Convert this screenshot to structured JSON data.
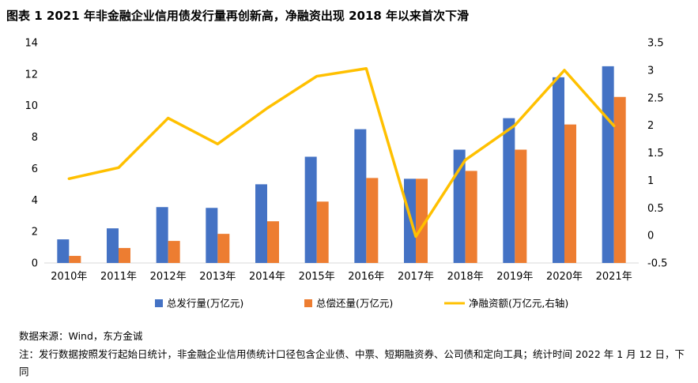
{
  "figure": {
    "title": "图表 1   2021 年非金融企业信用债发行量再创新高，净融资出现 2018 年以来首次下滑",
    "source": "数据来源：Wind，东方金诚",
    "note": "注：发行数据按照发行起始日统计，非金融企业信用债统计口径包含企业债、中票、短期融资券、公司债和定向工具；统计时间 2022 年 1 月 12 日，下同"
  },
  "chart_data": {
    "type": "bar",
    "categories": [
      "2010年",
      "2011年",
      "2012年",
      "2013年",
      "2014年",
      "2015年",
      "2016年",
      "2017年",
      "2018年",
      "2019年",
      "2020年",
      "2021年"
    ],
    "series": [
      {
        "name": "总发行量(万亿元)",
        "type": "bar",
        "axis": "left",
        "color": "#4472C4",
        "values": [
          1.5,
          2.2,
          3.55,
          3.5,
          5.0,
          6.75,
          8.5,
          5.35,
          7.2,
          9.2,
          11.8,
          12.5
        ]
      },
      {
        "name": "总偿还量(万亿元)",
        "type": "bar",
        "axis": "left",
        "color": "#ED7D31",
        "values": [
          0.45,
          0.95,
          1.4,
          1.85,
          2.65,
          3.9,
          5.4,
          5.35,
          5.85,
          7.2,
          8.8,
          10.55
        ]
      },
      {
        "name": "净融资额(万亿元,右轴)",
        "type": "line",
        "axis": "right",
        "color": "#FFC000",
        "values": [
          1.03,
          1.23,
          2.13,
          1.66,
          2.31,
          2.89,
          3.03,
          -0.02,
          1.37,
          2.0,
          3.0,
          1.99
        ]
      }
    ],
    "y_left": {
      "min": 0,
      "max": 14,
      "ticks": [
        0,
        2,
        4,
        6,
        8,
        10,
        12,
        14
      ]
    },
    "y_right": {
      "min": -0.5,
      "max": 3.5,
      "ticks": [
        -0.5,
        0,
        0.5,
        1,
        1.5,
        2,
        2.5,
        3,
        3.5
      ],
      "tick_labels": [
        "-0.5",
        "0",
        "0.5",
        "1",
        "1.5",
        "2",
        "2.5",
        "3",
        "3.5"
      ]
    },
    "grid": false,
    "legend_position": "bottom"
  }
}
